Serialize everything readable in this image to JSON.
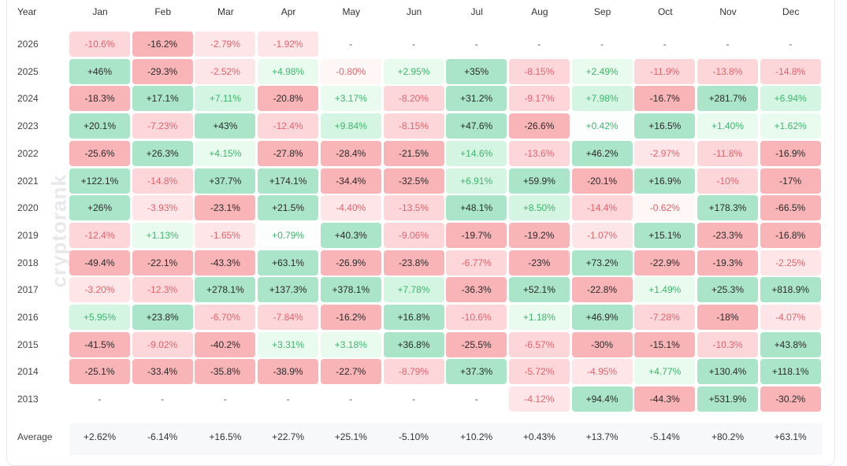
{
  "chart_data": {
    "type": "heatmap",
    "title": "",
    "watermark": "cryptorank",
    "year_header": "Year",
    "months": [
      "Jan",
      "Feb",
      "Mar",
      "Apr",
      "May",
      "Jun",
      "Jul",
      "Aug",
      "Sep",
      "Oct",
      "Nov",
      "Dec"
    ],
    "rows": [
      {
        "year": "2026",
        "values": [
          "-10.6%",
          "-16.2%",
          "-2.79%",
          "-1.92%",
          "-",
          "-",
          "-",
          "-",
          "-",
          "-",
          "-",
          "-"
        ]
      },
      {
        "year": "2025",
        "values": [
          "+46%",
          "-29.3%",
          "-2.52%",
          "+4.98%",
          "-0.80%",
          "+2.95%",
          "+35%",
          "-8.15%",
          "+2.49%",
          "-11.9%",
          "-13.8%",
          "-14.8%"
        ]
      },
      {
        "year": "2024",
        "values": [
          "-18.3%",
          "+17.1%",
          "+7.11%",
          "-20.8%",
          "+3.17%",
          "-8.20%",
          "+31.2%",
          "-9.17%",
          "+7.98%",
          "-16.7%",
          "+281.7%",
          "+6.94%"
        ]
      },
      {
        "year": "2023",
        "values": [
          "+20.1%",
          "-7.23%",
          "+43%",
          "-12.4%",
          "+9.84%",
          "-8.15%",
          "+47.6%",
          "-26.6%",
          "+0.42%",
          "+16.5%",
          "+1.40%",
          "+1.62%"
        ]
      },
      {
        "year": "2022",
        "values": [
          "-25.6%",
          "+26.3%",
          "+4.15%",
          "-27.8%",
          "-28.4%",
          "-21.5%",
          "+14.6%",
          "-13.6%",
          "+46.2%",
          "-2.97%",
          "-11.8%",
          "-16.9%"
        ]
      },
      {
        "year": "2021",
        "values": [
          "+122.1%",
          "-14.8%",
          "+37.7%",
          "+174.1%",
          "-34.4%",
          "-32.5%",
          "+6.91%",
          "+59.9%",
          "-20.1%",
          "+16.9%",
          "-10%",
          "-17%"
        ]
      },
      {
        "year": "2020",
        "values": [
          "+26%",
          "-3.93%",
          "-23.1%",
          "+21.5%",
          "-4.40%",
          "-13.5%",
          "+48.1%",
          "+8.50%",
          "-14.4%",
          "-0.62%",
          "+178.3%",
          "-66.5%"
        ]
      },
      {
        "year": "2019",
        "values": [
          "-12.4%",
          "+1.13%",
          "-1.65%",
          "+0.79%",
          "+40.3%",
          "-9.06%",
          "-19.7%",
          "-19.2%",
          "-1.07%",
          "+15.1%",
          "-23.3%",
          "-16.8%"
        ]
      },
      {
        "year": "2018",
        "values": [
          "-49.4%",
          "-22.1%",
          "-43.3%",
          "+63.1%",
          "-26.9%",
          "-23.8%",
          "-6.77%",
          "-23%",
          "+73.2%",
          "-22.9%",
          "-19.3%",
          "-2.25%"
        ]
      },
      {
        "year": "2017",
        "values": [
          "-3.20%",
          "-12.3%",
          "+278.1%",
          "+137.3%",
          "+378.1%",
          "+7.78%",
          "-36.3%",
          "+52.1%",
          "-22.8%",
          "+1.49%",
          "+25.3%",
          "+818.9%"
        ]
      },
      {
        "year": "2016",
        "values": [
          "+5.95%",
          "+23.8%",
          "-6.70%",
          "-7.84%",
          "-16.2%",
          "+16.8%",
          "-10.6%",
          "+1.18%",
          "+46.9%",
          "-7.28%",
          "-18%",
          "-4.07%"
        ]
      },
      {
        "year": "2015",
        "values": [
          "-41.5%",
          "-9.02%",
          "-40.2%",
          "+3.31%",
          "+3.18%",
          "+36.8%",
          "-25.5%",
          "-6.57%",
          "-30%",
          "-15.1%",
          "-10.3%",
          "+43.8%"
        ]
      },
      {
        "year": "2014",
        "values": [
          "-25.1%",
          "-33.4%",
          "-35.8%",
          "-38.9%",
          "-22.7%",
          "-8.79%",
          "+37.3%",
          "-5.72%",
          "-4.95%",
          "+4.77%",
          "+130.4%",
          "+118.1%"
        ]
      },
      {
        "year": "2013",
        "values": [
          "-",
          "-",
          "-",
          "-",
          "-",
          "-",
          "-",
          "-4.12%",
          "+94.4%",
          "-44.3%",
          "+531.9%",
          "-30.2%"
        ]
      }
    ],
    "average": {
      "label": "Average",
      "values": [
        "+2.62%",
        "-6.14%",
        "+16.5%",
        "+22.7%",
        "+25.1%",
        "-5.10%",
        "+10.2%",
        "+0.43%",
        "+13.7%",
        "-5.14%",
        "+80.2%",
        "+63.1%"
      ]
    },
    "colors": {
      "strong_negative": "#f9b4b8",
      "negative": "#fdd6da",
      "strong_positive": "#abe5c9",
      "positive": "#d3f5e2"
    }
  }
}
